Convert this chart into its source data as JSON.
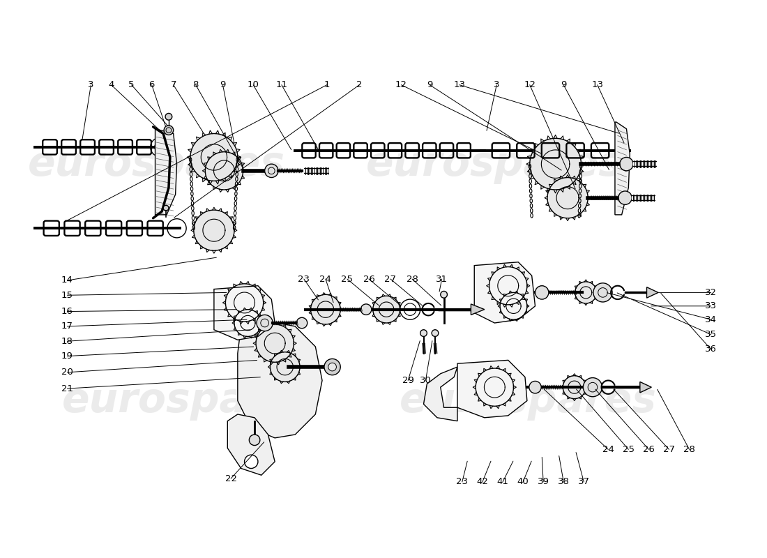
{
  "background_color": "#ffffff",
  "watermark_text": "eurospares",
  "watermark_color": "#c8c8c8",
  "line_color": "#000000",
  "fig_width": 11.0,
  "fig_height": 8.0,
  "top_labels": [
    [
      "3",
      103,
      108
    ],
    [
      "4",
      133,
      108
    ],
    [
      "5",
      163,
      108
    ],
    [
      "6",
      193,
      108
    ],
    [
      "7",
      223,
      108
    ],
    [
      "8",
      258,
      108
    ],
    [
      "9",
      300,
      108
    ],
    [
      "10",
      345,
      108
    ],
    [
      "11",
      388,
      108
    ],
    [
      "1",
      453,
      108
    ],
    [
      "2",
      503,
      108
    ],
    [
      "12",
      563,
      108
    ],
    [
      "9",
      605,
      108
    ],
    [
      "13",
      648,
      108
    ],
    [
      "3",
      703,
      108
    ],
    [
      "12",
      753,
      108
    ],
    [
      "9",
      803,
      108
    ],
    [
      "13",
      853,
      108
    ]
  ],
  "left_labels": [
    [
      "14",
      68,
      402
    ],
    [
      "15",
      68,
      424
    ],
    [
      "16",
      68,
      448
    ],
    [
      "17",
      68,
      470
    ],
    [
      "18",
      68,
      492
    ],
    [
      "19",
      68,
      514
    ],
    [
      "20",
      68,
      538
    ],
    [
      "21",
      68,
      562
    ]
  ],
  "mid_bottom_labels": [
    [
      "23",
      418,
      398
    ],
    [
      "24",
      450,
      398
    ],
    [
      "25",
      482,
      398
    ],
    [
      "26",
      514,
      398
    ],
    [
      "27",
      546,
      398
    ],
    [
      "28",
      578,
      398
    ],
    [
      "31",
      622,
      398
    ],
    [
      "29",
      572,
      548
    ],
    [
      "30",
      598,
      548
    ]
  ],
  "right_labels": [
    [
      "32",
      1020,
      420
    ],
    [
      "33",
      1020,
      440
    ],
    [
      "34",
      1020,
      460
    ],
    [
      "35",
      1020,
      482
    ],
    [
      "36",
      1020,
      504
    ],
    [
      "22",
      320,
      690
    ],
    [
      "23",
      652,
      700
    ],
    [
      "42",
      682,
      700
    ],
    [
      "41",
      712,
      700
    ],
    [
      "40",
      742,
      700
    ],
    [
      "39",
      772,
      700
    ],
    [
      "38",
      802,
      700
    ],
    [
      "37",
      832,
      700
    ],
    [
      "24",
      870,
      650
    ],
    [
      "25",
      900,
      650
    ],
    [
      "26",
      930,
      650
    ],
    [
      "27",
      960,
      650
    ],
    [
      "28",
      990,
      650
    ]
  ]
}
